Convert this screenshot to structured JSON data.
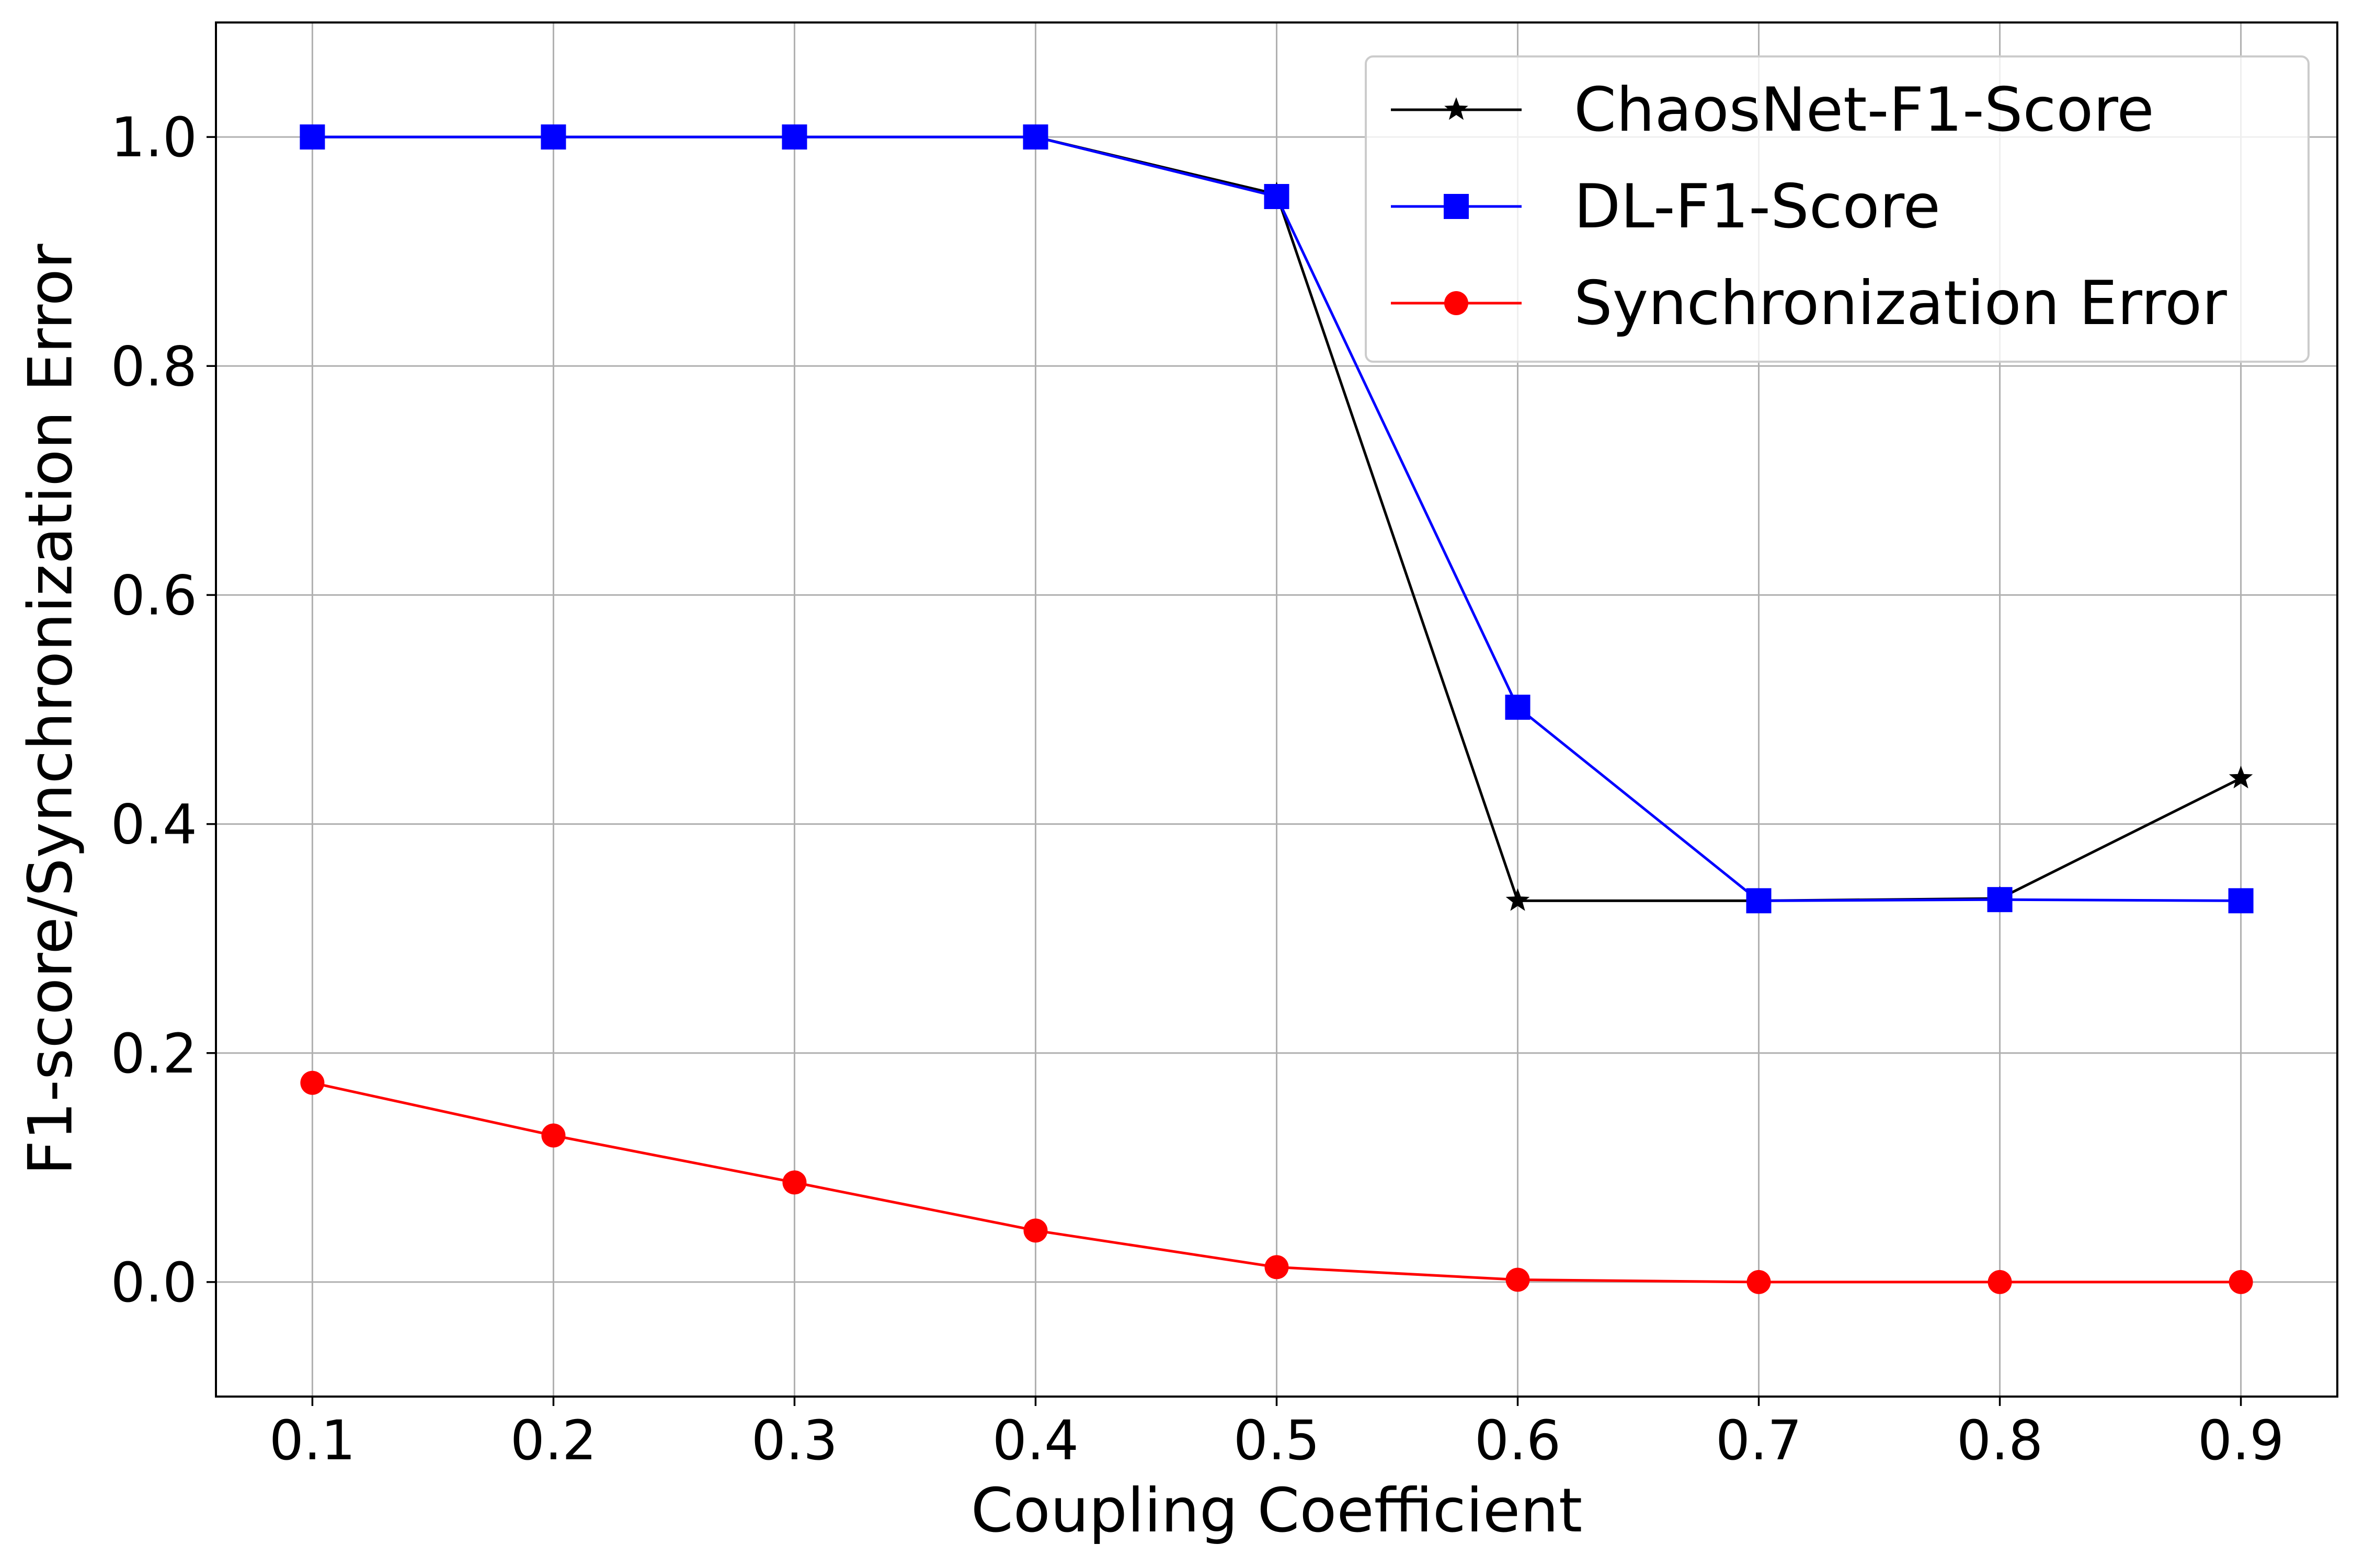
{
  "chart_data": {
    "type": "line",
    "title": "",
    "xlabel": "Coupling Coefficient",
    "ylabel": "F1-score/Synchronization Error",
    "x": [
      0.1,
      0.2,
      0.3,
      0.4,
      0.5,
      0.6,
      0.7,
      0.8,
      0.9
    ],
    "x_tick_labels": [
      "0.1",
      "0.2",
      "0.3",
      "0.4",
      "0.5",
      "0.6",
      "0.7",
      "0.8",
      "0.9"
    ],
    "y_ticks": [
      0.0,
      0.2,
      0.4,
      0.6,
      0.8,
      1.0
    ],
    "y_tick_labels": [
      "0.0",
      "0.2",
      "0.4",
      "0.6",
      "0.8",
      "1.0"
    ],
    "xlim": [
      0.06,
      0.94
    ],
    "ylim": [
      -0.1,
      1.1
    ],
    "grid": true,
    "legend_position": "top-right",
    "series": [
      {
        "name": "ChaosNet-F1-Score",
        "color": "#000000",
        "marker": "star",
        "values": [
          1.0,
          1.0,
          1.0,
          1.0,
          0.95,
          0.333,
          0.333,
          0.335,
          0.44
        ]
      },
      {
        "name": "DL-F1-Score",
        "color": "#0000ff",
        "marker": "square",
        "values": [
          1.0,
          1.0,
          1.0,
          1.0,
          0.948,
          0.502,
          0.333,
          0.334,
          0.333
        ]
      },
      {
        "name": "Synchronization Error",
        "color": "#ff0000",
        "marker": "circle",
        "values": [
          0.174,
          0.128,
          0.087,
          0.045,
          0.013,
          0.002,
          0.0,
          0.0,
          0.0
        ]
      }
    ]
  }
}
